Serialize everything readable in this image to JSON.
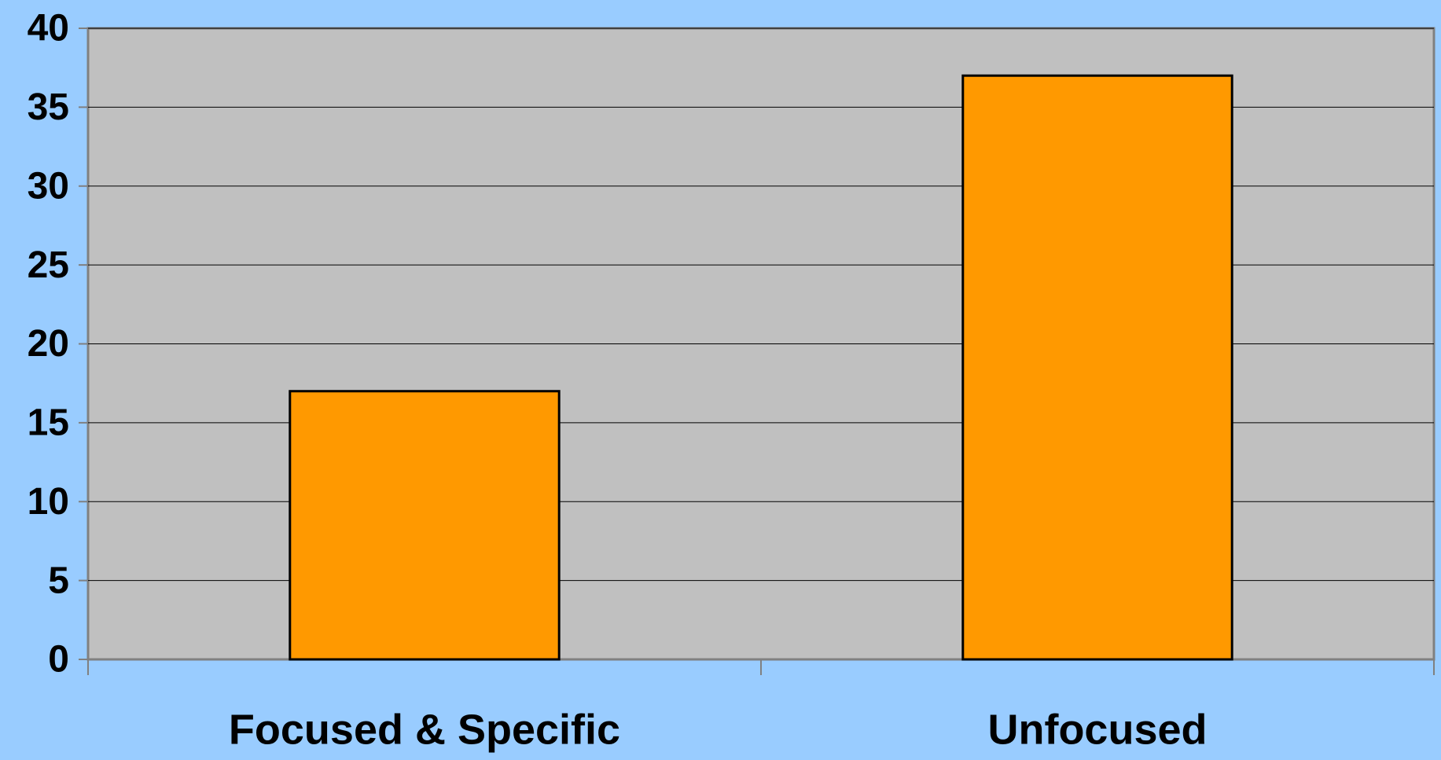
{
  "chart_data": {
    "type": "bar",
    "categories": [
      "Focused & Specific",
      "Unfocused"
    ],
    "values": [
      17,
      37
    ],
    "color": "#ff9900",
    "ylim": [
      0,
      40
    ],
    "yticks": [
      0,
      5,
      10,
      15,
      20,
      25,
      30,
      35,
      40
    ],
    "grid": true
  }
}
